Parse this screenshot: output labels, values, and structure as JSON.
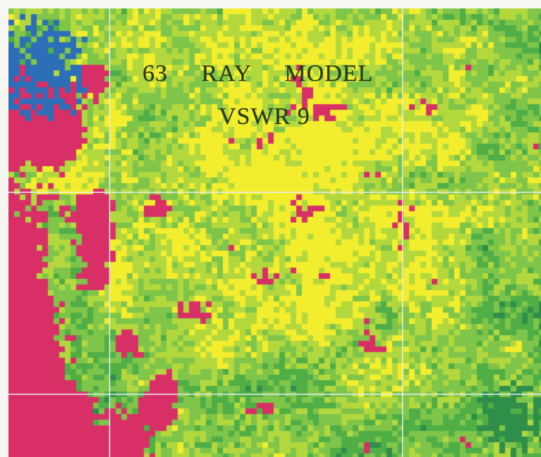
{
  "chart_data": {
    "type": "heatmap",
    "title_lines": [
      "63     RAY     MODEL",
      "VSWR 9"
    ],
    "xlabel": "",
    "ylabel": "",
    "grid": true,
    "grid_color": "#e8eefa",
    "grid_x_fractions": [
      0.19,
      0.74
    ],
    "grid_y_fractions": [
      0.41,
      0.86
    ],
    "colormap": [
      "#2c6fb8",
      "#2f8f4a",
      "#4fae46",
      "#7fc54a",
      "#b3d83e",
      "#f2ee2e",
      "#d92f67"
    ],
    "value_bands": [
      {
        "label": "blue",
        "color": "#2c6fb8"
      },
      {
        "label": "dark-green",
        "color": "#2f8f4a"
      },
      {
        "label": "green",
        "color": "#4fae46"
      },
      {
        "label": "light-green",
        "color": "#7fc54a"
      },
      {
        "label": "yellow-green",
        "color": "#b3d83e"
      },
      {
        "label": "yellow",
        "color": "#f2ee2e"
      },
      {
        "label": "magenta",
        "color": "#d92f67"
      }
    ],
    "regions": [
      {
        "band": "blue",
        "area": "top-left corner"
      },
      {
        "band": "yellow",
        "area": "upper-center"
      },
      {
        "band": "magenta",
        "area": "left and bottom-left"
      },
      {
        "band": "dark-green",
        "area": "right and bottom"
      }
    ]
  }
}
